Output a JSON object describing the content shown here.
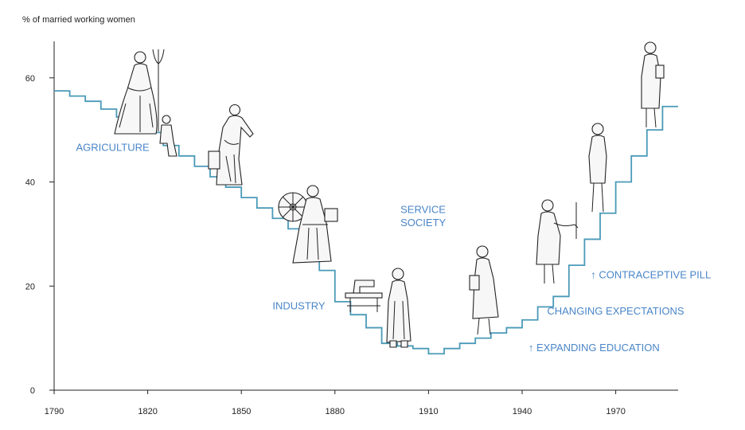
{
  "chart_data": {
    "type": "line",
    "style": "step",
    "ylabel": "% of married working women",
    "xlim": [
      1790,
      1990
    ],
    "ylim": [
      0,
      67
    ],
    "x_ticks": [
      1790,
      1820,
      1850,
      1880,
      1910,
      1940,
      1970
    ],
    "y_ticks": [
      0,
      20,
      40,
      60
    ],
    "series": [
      {
        "name": "% of married working women",
        "color": "#4a9ab8",
        "x": [
          1790,
          1795,
          1800,
          1805,
          1810,
          1815,
          1820,
          1825,
          1830,
          1835,
          1840,
          1845,
          1850,
          1855,
          1860,
          1865,
          1870,
          1875,
          1880,
          1885,
          1890,
          1895,
          1900,
          1905,
          1910,
          1915,
          1920,
          1925,
          1930,
          1935,
          1940,
          1945,
          1950,
          1955,
          1960,
          1965,
          1970,
          1975,
          1980,
          1985,
          1990
        ],
        "y": [
          57.5,
          56.5,
          55.5,
          54,
          52.5,
          51,
          49.5,
          47,
          45,
          43,
          41,
          39,
          37,
          35,
          33,
          31,
          29,
          23,
          17,
          14.5,
          12,
          9,
          8.5,
          8,
          7,
          8,
          9,
          10,
          11,
          12,
          13.5,
          16,
          18,
          24,
          29,
          34,
          40,
          45,
          50,
          54.5,
          54.5
        ]
      }
    ],
    "annotations": [
      {
        "text": "AGRICULTURE",
        "x": 1797,
        "y": 46
      },
      {
        "text": "INDUSTRY",
        "x": 1860,
        "y": 15.5
      },
      {
        "text": "SERVICE",
        "x": 1901,
        "y": 34
      },
      {
        "text": "SOCIETY",
        "x": 1901,
        "y": 31.5
      },
      {
        "text": "↑ CONTRACEPTIVE PILL",
        "x": 1962,
        "y": 21.5
      },
      {
        "text": "CHANGING EXPECTATIONS",
        "x": 1948,
        "y": 14.5
      },
      {
        "text": "↑  EXPANDING EDUCATION",
        "x": 1942,
        "y": 7.5
      }
    ]
  }
}
